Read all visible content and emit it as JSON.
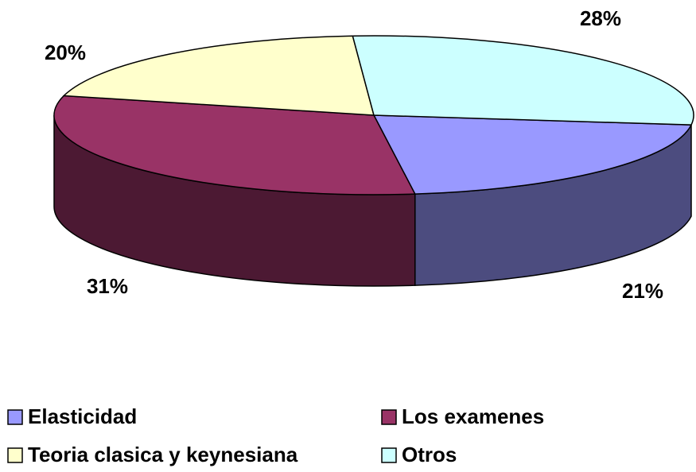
{
  "chart_data": {
    "type": "pie3d",
    "categories": [
      "Elasticidad",
      "Los examenes",
      "Teoria clasica y keynesiana",
      "Otros"
    ],
    "values": [
      21,
      31,
      20,
      28
    ],
    "value_labels": [
      "21%",
      "31%",
      "20%",
      "28%"
    ],
    "colors": [
      "#9999ff",
      "#993366",
      "#ffffcc",
      "#ccffff"
    ]
  }
}
